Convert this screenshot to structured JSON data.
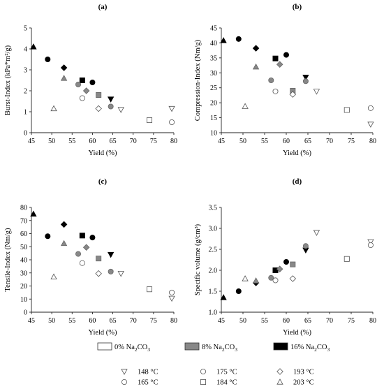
{
  "chart_data": [
    {
      "type": "scatter",
      "panel_label": "(a)",
      "xlabel": "Yield (%)",
      "ylabel": "Burst-Index (kPa*m²/g)",
      "xlim": [
        45,
        80
      ],
      "ylim": [
        0,
        5
      ],
      "xticks": [
        45,
        50,
        55,
        60,
        65,
        70,
        75,
        80
      ],
      "yticks": [
        0,
        1,
        2,
        3,
        4,
        5
      ],
      "points": [
        {
          "x": 45.5,
          "y": 4.1,
          "marker": "triangle-up",
          "fill": "#000000"
        },
        {
          "x": 49.0,
          "y": 3.5,
          "marker": "circle",
          "fill": "#000000"
        },
        {
          "x": 53.0,
          "y": 3.1,
          "marker": "diamond",
          "fill": "#000000"
        },
        {
          "x": 57.5,
          "y": 2.5,
          "marker": "square",
          "fill": "#000000"
        },
        {
          "x": 60.0,
          "y": 2.4,
          "marker": "circle",
          "fill": "#000000"
        },
        {
          "x": 64.5,
          "y": 1.6,
          "marker": "triangle-down",
          "fill": "#000000"
        },
        {
          "x": 53.0,
          "y": 2.6,
          "marker": "triangle-up",
          "fill": "#888888"
        },
        {
          "x": 56.5,
          "y": 2.3,
          "marker": "circle",
          "fill": "#888888"
        },
        {
          "x": 58.5,
          "y": 2.0,
          "marker": "diamond",
          "fill": "#888888"
        },
        {
          "x": 61.5,
          "y": 1.8,
          "marker": "square",
          "fill": "#888888"
        },
        {
          "x": 64.5,
          "y": 1.25,
          "marker": "circle",
          "fill": "#888888"
        },
        {
          "x": 50.5,
          "y": 1.15,
          "marker": "triangle-up",
          "fill": "#ffffff"
        },
        {
          "x": 57.5,
          "y": 1.65,
          "marker": "circle",
          "fill": "#ffffff"
        },
        {
          "x": 61.5,
          "y": 1.15,
          "marker": "diamond",
          "fill": "#ffffff"
        },
        {
          "x": 67.0,
          "y": 1.1,
          "marker": "triangle-down",
          "fill": "#ffffff"
        },
        {
          "x": 74.0,
          "y": 0.6,
          "marker": "square",
          "fill": "#ffffff"
        },
        {
          "x": 79.5,
          "y": 1.15,
          "marker": "triangle-down",
          "fill": "#ffffff"
        },
        {
          "x": 79.5,
          "y": 0.5,
          "marker": "circle",
          "fill": "#ffffff"
        }
      ]
    },
    {
      "type": "scatter",
      "panel_label": "(b)",
      "xlabel": "Yield (%)",
      "ylabel": "Compression-Index (Nm/g)",
      "xlim": [
        45,
        80
      ],
      "ylim": [
        10,
        45
      ],
      "xticks": [
        45,
        50,
        55,
        60,
        65,
        70,
        75,
        80
      ],
      "yticks": [
        10,
        15,
        20,
        25,
        30,
        35,
        40,
        45
      ],
      "points": [
        {
          "x": 45.5,
          "y": 40.8,
          "marker": "triangle-up",
          "fill": "#000000"
        },
        {
          "x": 49.0,
          "y": 41.3,
          "marker": "circle",
          "fill": "#000000"
        },
        {
          "x": 53.0,
          "y": 38.2,
          "marker": "diamond",
          "fill": "#000000"
        },
        {
          "x": 57.5,
          "y": 34.8,
          "marker": "square",
          "fill": "#000000"
        },
        {
          "x": 60.0,
          "y": 36.0,
          "marker": "circle",
          "fill": "#000000"
        },
        {
          "x": 64.5,
          "y": 28.5,
          "marker": "triangle-down",
          "fill": "#000000"
        },
        {
          "x": 53.0,
          "y": 32.0,
          "marker": "triangle-up",
          "fill": "#888888"
        },
        {
          "x": 56.5,
          "y": 27.5,
          "marker": "circle",
          "fill": "#888888"
        },
        {
          "x": 58.5,
          "y": 32.8,
          "marker": "diamond",
          "fill": "#888888"
        },
        {
          "x": 61.5,
          "y": 24.0,
          "marker": "square",
          "fill": "#888888"
        },
        {
          "x": 64.5,
          "y": 27.2,
          "marker": "circle",
          "fill": "#888888"
        },
        {
          "x": 50.5,
          "y": 18.8,
          "marker": "triangle-up",
          "fill": "#ffffff"
        },
        {
          "x": 57.5,
          "y": 23.8,
          "marker": "circle",
          "fill": "#ffffff"
        },
        {
          "x": 61.5,
          "y": 22.8,
          "marker": "diamond",
          "fill": "#ffffff"
        },
        {
          "x": 67.0,
          "y": 23.8,
          "marker": "triangle-down",
          "fill": "#ffffff"
        },
        {
          "x": 74.0,
          "y": 17.6,
          "marker": "square",
          "fill": "#ffffff"
        },
        {
          "x": 79.5,
          "y": 12.8,
          "marker": "triangle-down",
          "fill": "#ffffff"
        },
        {
          "x": 79.5,
          "y": 18.2,
          "marker": "circle",
          "fill": "#ffffff"
        }
      ]
    },
    {
      "type": "scatter",
      "panel_label": "(c)",
      "xlabel": "Yield (%)",
      "ylabel": "Tensile-Index (Nm/g)",
      "xlim": [
        45,
        80
      ],
      "ylim": [
        0,
        80
      ],
      "xticks": [
        45,
        50,
        55,
        60,
        65,
        70,
        75,
        80
      ],
      "yticks": [
        0,
        10,
        20,
        30,
        40,
        50,
        60,
        70,
        80
      ],
      "points": [
        {
          "x": 45.5,
          "y": 75.0,
          "marker": "triangle-up",
          "fill": "#000000"
        },
        {
          "x": 49.0,
          "y": 58.0,
          "marker": "circle",
          "fill": "#000000"
        },
        {
          "x": 53.0,
          "y": 67.0,
          "marker": "diamond",
          "fill": "#000000"
        },
        {
          "x": 57.5,
          "y": 58.5,
          "marker": "square",
          "fill": "#000000"
        },
        {
          "x": 60.0,
          "y": 57.0,
          "marker": "circle",
          "fill": "#000000"
        },
        {
          "x": 64.5,
          "y": 44.0,
          "marker": "triangle-down",
          "fill": "#000000"
        },
        {
          "x": 53.0,
          "y": 52.5,
          "marker": "triangle-up",
          "fill": "#888888"
        },
        {
          "x": 56.5,
          "y": 44.5,
          "marker": "circle",
          "fill": "#888888"
        },
        {
          "x": 58.5,
          "y": 49.5,
          "marker": "diamond",
          "fill": "#888888"
        },
        {
          "x": 61.5,
          "y": 41.0,
          "marker": "square",
          "fill": "#888888"
        },
        {
          "x": 64.5,
          "y": 31.0,
          "marker": "circle",
          "fill": "#888888"
        },
        {
          "x": 50.5,
          "y": 27.0,
          "marker": "triangle-up",
          "fill": "#ffffff"
        },
        {
          "x": 57.5,
          "y": 37.5,
          "marker": "circle",
          "fill": "#ffffff"
        },
        {
          "x": 61.5,
          "y": 29.5,
          "marker": "diamond",
          "fill": "#ffffff"
        },
        {
          "x": 67.0,
          "y": 29.5,
          "marker": "triangle-down",
          "fill": "#ffffff"
        },
        {
          "x": 74.0,
          "y": 17.5,
          "marker": "square",
          "fill": "#ffffff"
        },
        {
          "x": 79.5,
          "y": 10.5,
          "marker": "triangle-down",
          "fill": "#ffffff"
        },
        {
          "x": 79.5,
          "y": 15.0,
          "marker": "circle",
          "fill": "#ffffff"
        }
      ]
    },
    {
      "type": "scatter",
      "panel_label": "(d)",
      "xlabel": "Yield (%)",
      "ylabel": "Specific volume (g/cm³)",
      "xlim": [
        45,
        80
      ],
      "ylim": [
        1.0,
        3.5
      ],
      "xticks": [
        45,
        50,
        55,
        60,
        65,
        70,
        75,
        80
      ],
      "yticks": [
        1.0,
        1.5,
        2.0,
        2.5,
        3.0,
        3.5
      ],
      "ytick_labels": [
        "1.0",
        "1.5",
        "2.0",
        "2.5",
        "3.0",
        "3.5"
      ],
      "points": [
        {
          "x": 45.5,
          "y": 1.35,
          "marker": "triangle-up",
          "fill": "#000000"
        },
        {
          "x": 49.0,
          "y": 1.5,
          "marker": "circle",
          "fill": "#000000"
        },
        {
          "x": 53.0,
          "y": 1.7,
          "marker": "diamond",
          "fill": "#000000"
        },
        {
          "x": 57.5,
          "y": 2.0,
          "marker": "square",
          "fill": "#000000"
        },
        {
          "x": 60.0,
          "y": 2.2,
          "marker": "circle",
          "fill": "#000000"
        },
        {
          "x": 64.5,
          "y": 2.48,
          "marker": "triangle-down",
          "fill": "#000000"
        },
        {
          "x": 53.0,
          "y": 1.75,
          "marker": "triangle-up",
          "fill": "#888888"
        },
        {
          "x": 56.5,
          "y": 1.82,
          "marker": "circle",
          "fill": "#888888"
        },
        {
          "x": 58.5,
          "y": 2.03,
          "marker": "diamond",
          "fill": "#888888"
        },
        {
          "x": 61.5,
          "y": 2.14,
          "marker": "square",
          "fill": "#888888"
        },
        {
          "x": 64.5,
          "y": 2.58,
          "marker": "circle",
          "fill": "#888888"
        },
        {
          "x": 50.5,
          "y": 1.8,
          "marker": "triangle-up",
          "fill": "#ffffff"
        },
        {
          "x": 57.5,
          "y": 1.76,
          "marker": "circle",
          "fill": "#ffffff"
        },
        {
          "x": 61.5,
          "y": 1.8,
          "marker": "diamond",
          "fill": "#ffffff"
        },
        {
          "x": 67.0,
          "y": 2.9,
          "marker": "triangle-down",
          "fill": "#ffffff"
        },
        {
          "x": 74.0,
          "y": 2.27,
          "marker": "square",
          "fill": "#ffffff"
        },
        {
          "x": 79.5,
          "y": 2.68,
          "marker": "triangle-down",
          "fill": "#ffffff"
        },
        {
          "x": 79.5,
          "y": 2.6,
          "marker": "circle",
          "fill": "#ffffff"
        }
      ]
    }
  ],
  "legend": {
    "fills": [
      {
        "label": "0% Na",
        "sub": "2",
        "tail": "CO",
        "sub2": "3",
        "color": "#ffffff"
      },
      {
        "label": "8% Na",
        "sub": "2",
        "tail": "CO",
        "sub2": "3",
        "color": "#888888"
      },
      {
        "label": "16% Na",
        "sub": "2",
        "tail": "CO",
        "sub2": "3",
        "color": "#000000"
      }
    ],
    "markers": [
      {
        "label": "148 °C",
        "marker": "triangle-down"
      },
      {
        "label": "175 °C",
        "marker": "circle"
      },
      {
        "label": "193 °C",
        "marker": "diamond"
      },
      {
        "label": "165 °C",
        "marker": "circle"
      },
      {
        "label": "184 °C",
        "marker": "square"
      },
      {
        "label": "203 °C",
        "marker": "triangle-up"
      }
    ]
  }
}
